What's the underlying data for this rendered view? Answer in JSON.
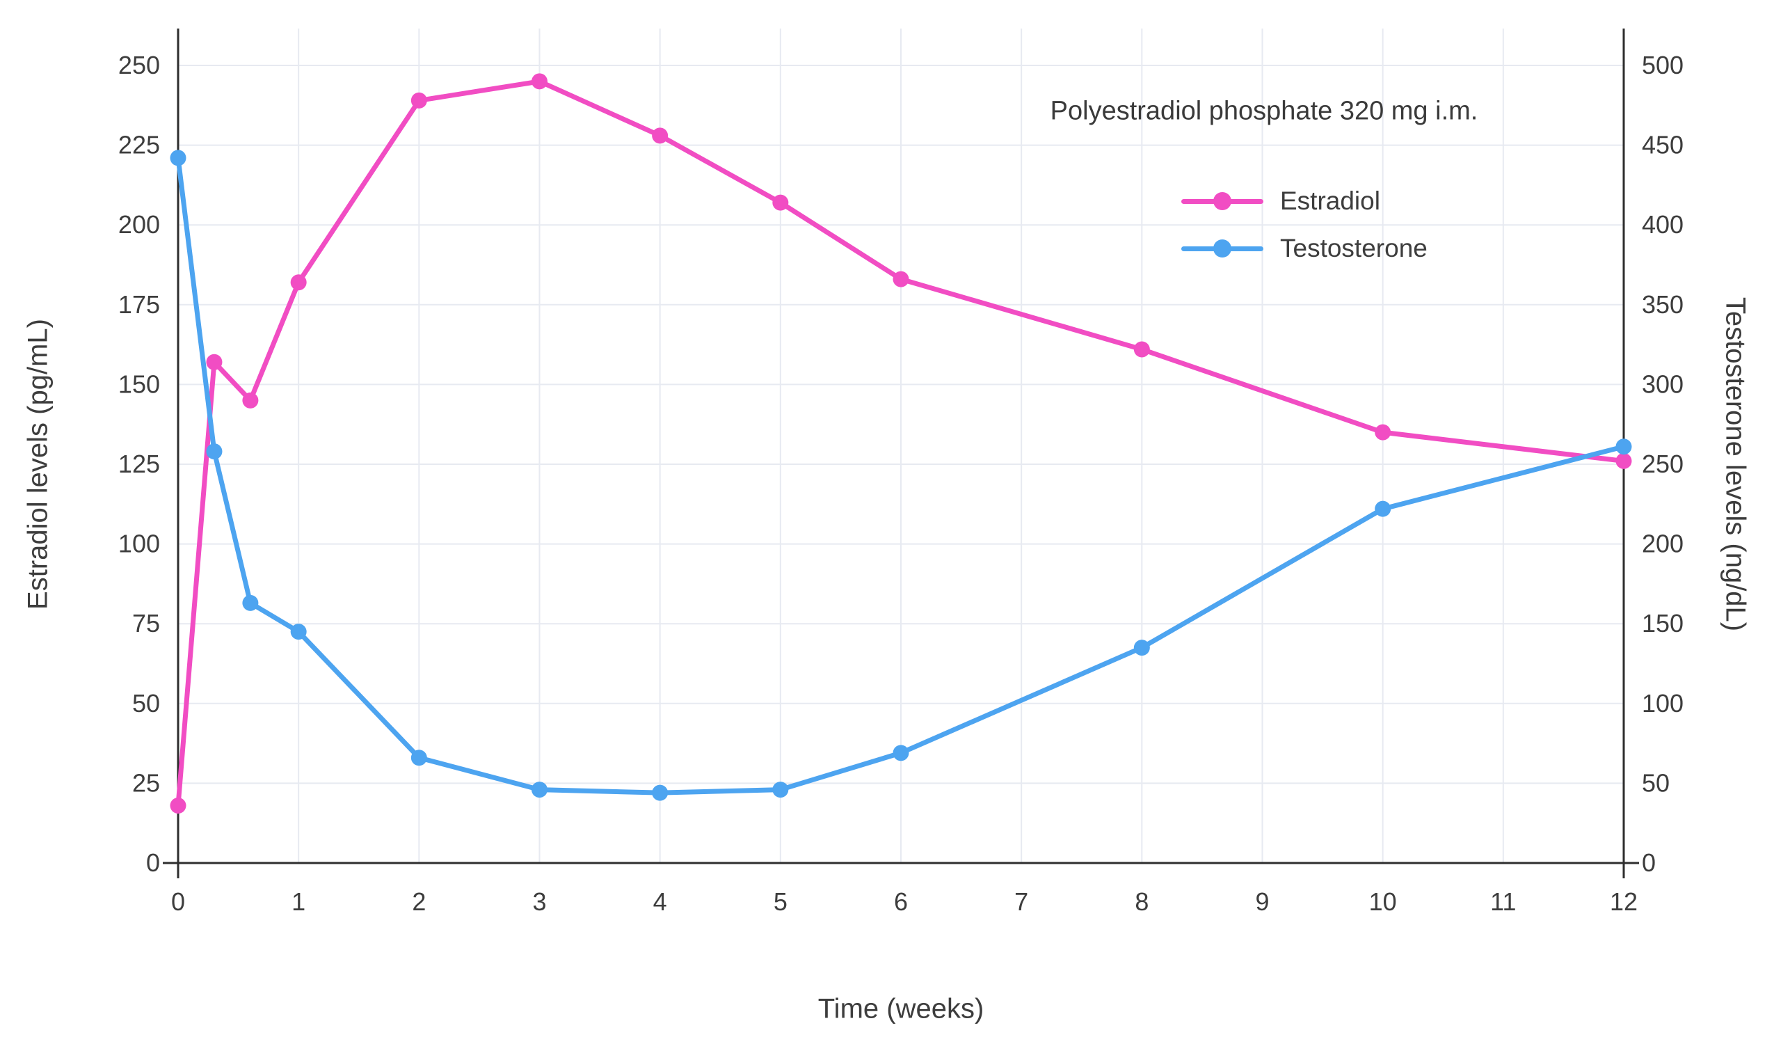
{
  "chart_data": {
    "type": "line",
    "annotation": "Polyestradiol phosphate 320 mg i.m.",
    "xlabel": "Time (weeks)",
    "ylabel_left": "Estradiol levels (pg/mL)",
    "ylabel_right": "Testosterone levels (ng/dL)",
    "xlim": [
      0,
      12
    ],
    "ylim_left": [
      0,
      250
    ],
    "ylim_right": [
      0,
      500
    ],
    "x_ticks": [
      0,
      1,
      2,
      3,
      4,
      5,
      6,
      7,
      8,
      9,
      10,
      11,
      12
    ],
    "y_ticks_left": [
      0,
      25,
      50,
      75,
      100,
      125,
      150,
      175,
      200,
      225,
      250
    ],
    "y_ticks_right": [
      0,
      50,
      100,
      150,
      200,
      250,
      300,
      350,
      400,
      450,
      500
    ],
    "grid": true,
    "legend_position": "inside-top-right",
    "colors": {
      "grid": "#E7EAF1",
      "axis": "#2E2E2E",
      "tick_text": "#3D3D3D"
    },
    "series": [
      {
        "name": "Estradiol",
        "axis": "left",
        "unit": "pg/mL",
        "color": "#F14DC3",
        "x": [
          0,
          0.3,
          0.6,
          1,
          2,
          3,
          4,
          5,
          6,
          8,
          10,
          12
        ],
        "values": [
          18,
          157,
          145,
          182,
          239,
          245,
          228,
          207,
          183,
          161,
          135,
          126
        ]
      },
      {
        "name": "Testosterone",
        "axis": "right",
        "unit": "ng/dL",
        "color": "#4DA4F0",
        "x": [
          0,
          0.3,
          0.6,
          1,
          2,
          3,
          4,
          5,
          6,
          8,
          10,
          12
        ],
        "values": [
          442,
          258,
          163,
          145,
          66,
          46,
          44,
          46,
          69,
          135,
          222,
          261
        ]
      }
    ]
  }
}
